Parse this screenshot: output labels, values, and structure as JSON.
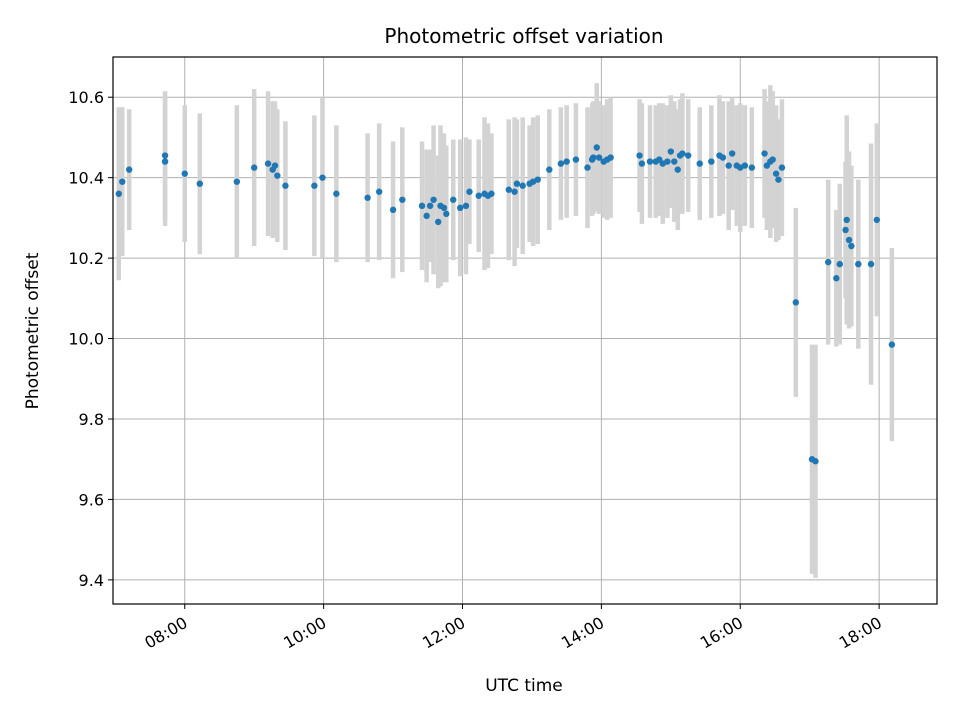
{
  "chart_data": {
    "type": "scatter",
    "title": "Photometric offset variation",
    "xlabel": "UTC time",
    "ylabel": "Photometric offset",
    "x_unit": "UTC time (hours)",
    "xlim": [
      "06:58",
      "18:50"
    ],
    "ylim": [
      9.34,
      10.7
    ],
    "x_ticks": [
      "08:00",
      "10:00",
      "12:00",
      "14:00",
      "16:00",
      "18:00"
    ],
    "y_ticks": [
      "9.4",
      "9.6",
      "9.8",
      "10.0",
      "10.2",
      "10.4",
      "10.6"
    ],
    "x_tick_label_rotation_deg": 30,
    "grid": true,
    "legend": false,
    "colors": {
      "points": "#1f77b4",
      "error_bars": "#d3d3d3",
      "grid": "#b0b0b0",
      "axes": "#000000"
    },
    "points": [
      {
        "t": "07:03",
        "y": 10.36,
        "err": 0.215
      },
      {
        "t": "07:06",
        "y": 10.39,
        "err": 0.185
      },
      {
        "t": "07:12",
        "y": 10.42,
        "err": 0.15
      },
      {
        "t": "07:43",
        "y": 10.44,
        "err": 0.16
      },
      {
        "t": "07:43",
        "y": 10.455,
        "err": 0.16
      },
      {
        "t": "08:00",
        "y": 10.41,
        "err": 0.17
      },
      {
        "t": "08:13",
        "y": 10.385,
        "err": 0.175
      },
      {
        "t": "08:45",
        "y": 10.39,
        "err": 0.19
      },
      {
        "t": "09:00",
        "y": 10.425,
        "err": 0.195
      },
      {
        "t": "09:12",
        "y": 10.435,
        "err": 0.18
      },
      {
        "t": "09:16",
        "y": 10.42,
        "err": 0.17
      },
      {
        "t": "09:18",
        "y": 10.43,
        "err": 0.16
      },
      {
        "t": "09:20",
        "y": 10.405,
        "err": 0.165
      },
      {
        "t": "09:27",
        "y": 10.38,
        "err": 0.16
      },
      {
        "t": "09:52",
        "y": 10.38,
        "err": 0.175
      },
      {
        "t": "09:59",
        "y": 10.4,
        "err": 0.2
      },
      {
        "t": "10:11",
        "y": 10.36,
        "err": 0.17
      },
      {
        "t": "10:38",
        "y": 10.35,
        "err": 0.16
      },
      {
        "t": "10:48",
        "y": 10.365,
        "err": 0.17
      },
      {
        "t": "11:00",
        "y": 10.32,
        "err": 0.17
      },
      {
        "t": "11:08",
        "y": 10.345,
        "err": 0.18
      },
      {
        "t": "11:25",
        "y": 10.33,
        "err": 0.16
      },
      {
        "t": "11:29",
        "y": 10.305,
        "err": 0.165
      },
      {
        "t": "11:32",
        "y": 10.33,
        "err": 0.14
      },
      {
        "t": "11:35",
        "y": 10.345,
        "err": 0.185
      },
      {
        "t": "11:39",
        "y": 10.29,
        "err": 0.165
      },
      {
        "t": "11:41",
        "y": 10.33,
        "err": 0.2
      },
      {
        "t": "11:44",
        "y": 10.325,
        "err": 0.185
      },
      {
        "t": "11:46",
        "y": 10.31,
        "err": 0.17
      },
      {
        "t": "11:52",
        "y": 10.345,
        "err": 0.15
      },
      {
        "t": "11:58",
        "y": 10.325,
        "err": 0.17
      },
      {
        "t": "12:03",
        "y": 10.33,
        "err": 0.17
      },
      {
        "t": "12:06",
        "y": 10.365,
        "err": 0.13
      },
      {
        "t": "12:14",
        "y": 10.355,
        "err": 0.14
      },
      {
        "t": "12:19",
        "y": 10.36,
        "err": 0.19
      },
      {
        "t": "12:22",
        "y": 10.355,
        "err": 0.18
      },
      {
        "t": "12:25",
        "y": 10.36,
        "err": 0.15
      },
      {
        "t": "12:40",
        "y": 10.37,
        "err": 0.175
      },
      {
        "t": "12:45",
        "y": 10.365,
        "err": 0.185
      },
      {
        "t": "12:47",
        "y": 10.385,
        "err": 0.16
      },
      {
        "t": "12:52",
        "y": 10.38,
        "err": 0.17
      },
      {
        "t": "12:58",
        "y": 10.385,
        "err": 0.145
      },
      {
        "t": "13:01",
        "y": 10.39,
        "err": 0.16
      },
      {
        "t": "13:05",
        "y": 10.395,
        "err": 0.16
      },
      {
        "t": "13:15",
        "y": 10.42,
        "err": 0.15
      },
      {
        "t": "13:25",
        "y": 10.435,
        "err": 0.14
      },
      {
        "t": "13:30",
        "y": 10.44,
        "err": 0.14
      },
      {
        "t": "13:38",
        "y": 10.445,
        "err": 0.14
      },
      {
        "t": "13:48",
        "y": 10.425,
        "err": 0.15
      },
      {
        "t": "13:52",
        "y": 10.445,
        "err": 0.14
      },
      {
        "t": "13:53",
        "y": 10.45,
        "err": 0.14
      },
      {
        "t": "13:56",
        "y": 10.475,
        "err": 0.16
      },
      {
        "t": "13:58",
        "y": 10.45,
        "err": 0.14
      },
      {
        "t": "14:02",
        "y": 10.44,
        "err": 0.14
      },
      {
        "t": "14:05",
        "y": 10.445,
        "err": 0.15
      },
      {
        "t": "14:08",
        "y": 10.45,
        "err": 0.15
      },
      {
        "t": "14:33",
        "y": 10.455,
        "err": 0.14
      },
      {
        "t": "14:35",
        "y": 10.435,
        "err": 0.15
      },
      {
        "t": "14:42",
        "y": 10.44,
        "err": 0.14
      },
      {
        "t": "14:47",
        "y": 10.44,
        "err": 0.14
      },
      {
        "t": "14:50",
        "y": 10.445,
        "err": 0.14
      },
      {
        "t": "14:53",
        "y": 10.435,
        "err": 0.15
      },
      {
        "t": "14:57",
        "y": 10.44,
        "err": 0.14
      },
      {
        "t": "15:00",
        "y": 10.465,
        "err": 0.14
      },
      {
        "t": "15:03",
        "y": 10.44,
        "err": 0.15
      },
      {
        "t": "15:06",
        "y": 10.42,
        "err": 0.15
      },
      {
        "t": "15:08",
        "y": 10.455,
        "err": 0.14
      },
      {
        "t": "15:10",
        "y": 10.46,
        "err": 0.15
      },
      {
        "t": "15:15",
        "y": 10.455,
        "err": 0.14
      },
      {
        "t": "15:25",
        "y": 10.435,
        "err": 0.14
      },
      {
        "t": "15:35",
        "y": 10.44,
        "err": 0.14
      },
      {
        "t": "15:42",
        "y": 10.455,
        "err": 0.15
      },
      {
        "t": "15:45",
        "y": 10.45,
        "err": 0.14
      },
      {
        "t": "15:50",
        "y": 10.43,
        "err": 0.16
      },
      {
        "t": "15:53",
        "y": 10.46,
        "err": 0.14
      },
      {
        "t": "15:57",
        "y": 10.43,
        "err": 0.15
      },
      {
        "t": "16:00",
        "y": 10.425,
        "err": 0.16
      },
      {
        "t": "16:04",
        "y": 10.43,
        "err": 0.15
      },
      {
        "t": "16:10",
        "y": 10.425,
        "err": 0.15
      },
      {
        "t": "16:21",
        "y": 10.46,
        "err": 0.16
      },
      {
        "t": "16:23",
        "y": 10.43,
        "err": 0.16
      },
      {
        "t": "16:26",
        "y": 10.44,
        "err": 0.19
      },
      {
        "t": "16:28",
        "y": 10.445,
        "err": 0.17
      },
      {
        "t": "16:31",
        "y": 10.41,
        "err": 0.17
      },
      {
        "t": "16:33",
        "y": 10.395,
        "err": 0.15
      },
      {
        "t": "16:36",
        "y": 10.425,
        "err": 0.17
      },
      {
        "t": "16:48",
        "y": 10.09,
        "err": 0.235
      },
      {
        "t": "17:02",
        "y": 9.7,
        "err": 0.285
      },
      {
        "t": "17:05",
        "y": 9.695,
        "err": 0.29
      },
      {
        "t": "17:16",
        "y": 10.19,
        "err": 0.205
      },
      {
        "t": "17:23",
        "y": 10.15,
        "err": 0.17
      },
      {
        "t": "17:26",
        "y": 10.185,
        "err": 0.2
      },
      {
        "t": "17:31",
        "y": 10.27,
        "err": 0.17
      },
      {
        "t": "17:32",
        "y": 10.295,
        "err": 0.26
      },
      {
        "t": "17:34",
        "y": 10.245,
        "err": 0.22
      },
      {
        "t": "17:36",
        "y": 10.23,
        "err": 0.2
      },
      {
        "t": "17:42",
        "y": 10.185,
        "err": 0.21
      },
      {
        "t": "17:53",
        "y": 10.185,
        "err": 0.3
      },
      {
        "t": "17:58",
        "y": 10.295,
        "err": 0.24
      },
      {
        "t": "18:11",
        "y": 9.985,
        "err": 0.24
      }
    ]
  }
}
